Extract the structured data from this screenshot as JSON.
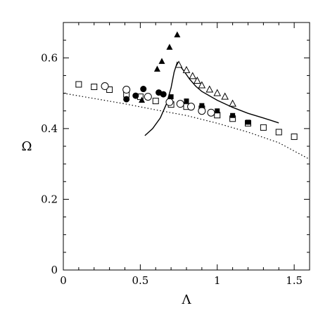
{
  "chart_data": {
    "type": "scatter",
    "title": "",
    "xlabel": "Λ",
    "ylabel": "Ω",
    "xlim": [
      0,
      1.6
    ],
    "ylim": [
      0,
      0.7
    ],
    "x_ticks": [
      0,
      0.5,
      1,
      1.5
    ],
    "x_tick_labels": [
      "0",
      "0.5",
      "1",
      "1.5"
    ],
    "y_ticks": [
      0,
      0.2,
      0.4,
      0.6
    ],
    "y_tick_labels": [
      "0",
      "0.2",
      "0.4",
      "0.6"
    ],
    "grid": false,
    "legend": false,
    "series": [
      {
        "marker": "open-square",
        "points": [
          [
            0.1,
            0.525
          ],
          [
            0.2,
            0.518
          ],
          [
            0.3,
            0.51
          ],
          [
            0.41,
            0.497
          ],
          [
            0.5,
            0.49
          ],
          [
            0.6,
            0.478
          ],
          [
            0.7,
            0.468
          ],
          [
            0.8,
            0.462
          ],
          [
            0.9,
            0.456
          ],
          [
            1.0,
            0.438
          ],
          [
            1.1,
            0.428
          ],
          [
            1.2,
            0.415
          ],
          [
            1.3,
            0.403
          ],
          [
            1.4,
            0.39
          ],
          [
            1.5,
            0.377
          ]
        ]
      },
      {
        "marker": "open-circle",
        "points": [
          [
            0.27,
            0.52
          ],
          [
            0.41,
            0.51
          ],
          [
            0.55,
            0.49
          ],
          [
            0.69,
            0.475
          ],
          [
            0.76,
            0.47
          ],
          [
            0.83,
            0.462
          ],
          [
            0.9,
            0.45
          ],
          [
            0.96,
            0.445
          ]
        ]
      },
      {
        "marker": "filled-circle",
        "points": [
          [
            0.41,
            0.483
          ],
          [
            0.47,
            0.493
          ],
          [
            0.52,
            0.512
          ],
          [
            0.62,
            0.502
          ],
          [
            0.65,
            0.497
          ]
        ]
      },
      {
        "marker": "filled-square",
        "points": [
          [
            0.7,
            0.49
          ],
          [
            0.8,
            0.478
          ],
          [
            0.9,
            0.465
          ],
          [
            1.0,
            0.45
          ],
          [
            1.1,
            0.437
          ],
          [
            1.2,
            0.418
          ]
        ]
      },
      {
        "marker": "filled-triangle",
        "points": [
          [
            0.51,
            0.48
          ],
          [
            0.61,
            0.568
          ],
          [
            0.64,
            0.59
          ],
          [
            0.69,
            0.63
          ],
          [
            0.74,
            0.665
          ]
        ]
      },
      {
        "marker": "open-triangle",
        "points": [
          [
            0.75,
            0.58
          ],
          [
            0.8,
            0.565
          ],
          [
            0.84,
            0.548
          ],
          [
            0.87,
            0.535
          ],
          [
            0.9,
            0.522
          ],
          [
            0.95,
            0.51
          ],
          [
            1.0,
            0.5
          ],
          [
            1.05,
            0.49
          ],
          [
            1.1,
            0.47
          ]
        ]
      },
      {
        "marker": "solid-line",
        "points": [
          [
            0.53,
            0.38
          ],
          [
            0.58,
            0.4
          ],
          [
            0.63,
            0.43
          ],
          [
            0.67,
            0.47
          ],
          [
            0.7,
            0.515
          ],
          [
            0.72,
            0.56
          ],
          [
            0.74,
            0.587
          ],
          [
            0.78,
            0.565
          ],
          [
            0.82,
            0.54
          ],
          [
            0.86,
            0.52
          ],
          [
            0.9,
            0.505
          ],
          [
            1.0,
            0.48
          ],
          [
            1.1,
            0.46
          ],
          [
            1.2,
            0.443
          ],
          [
            1.3,
            0.43
          ],
          [
            1.4,
            0.416
          ]
        ]
      },
      {
        "marker": "dotted-line",
        "points": [
          [
            0,
            0.5
          ],
          [
            0.2,
            0.485
          ],
          [
            0.4,
            0.47
          ],
          [
            0.6,
            0.453
          ],
          [
            0.8,
            0.437
          ],
          [
            1.0,
            0.415
          ],
          [
            1.2,
            0.39
          ],
          [
            1.4,
            0.36
          ],
          [
            1.6,
            0.313
          ]
        ]
      }
    ]
  }
}
